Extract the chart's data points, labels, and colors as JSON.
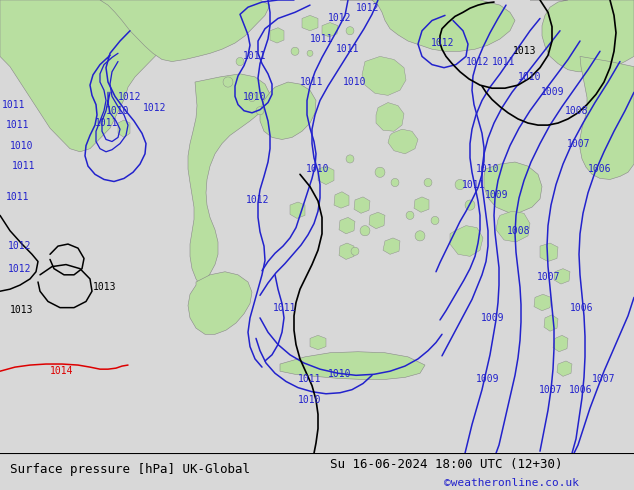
{
  "title_left": "Surface pressure [hPa] UK-Global",
  "title_right": "Su 16-06-2024 18:00 UTC (12+30)",
  "title_right2": "©weatheronline.co.uk",
  "bg_color": "#d8d8d8",
  "land_color": "#b8dfa0",
  "sea_color": "#d8d8d8",
  "isobar_blue_color": "#2222cc",
  "isobar_black_color": "#000000",
  "isobar_red_color": "#dd0000",
  "coast_color": "#888888",
  "label_fontsize": 7.0,
  "title_fontsize": 9.0,
  "bottom_bar_color": "#c8c8c8",
  "lw_isobar": 1.1
}
